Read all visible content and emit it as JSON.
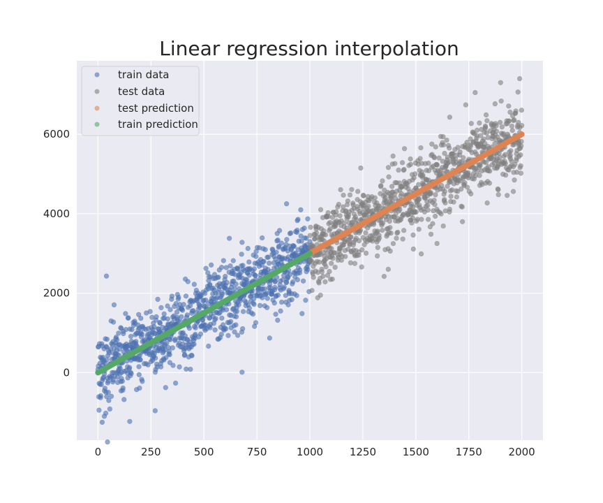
{
  "chart_data": {
    "type": "scatter",
    "title": "Linear regression interpolation",
    "xlabel": "",
    "ylabel": "",
    "xlim": [
      -100,
      2100
    ],
    "ylim": [
      -1700,
      7850
    ],
    "x_ticks": [
      0,
      250,
      500,
      750,
      1000,
      1250,
      1500,
      1750,
      2000
    ],
    "y_ticks": [
      0,
      2000,
      4000,
      6000
    ],
    "grid": true,
    "legend_position": "top-left",
    "colors": {
      "background": "#eaeaf2",
      "grid": "#ffffff",
      "train_data": "#4c72b0",
      "test_data": "#808080",
      "test_prediction": "#dd8452",
      "train_prediction": "#55a868"
    },
    "series": [
      {
        "name": "train data",
        "kind": "scatter",
        "color": "#4c72b0",
        "x_range": [
          0,
          1000
        ],
        "trend": {
          "slope": 3.0,
          "intercept": 0
        },
        "noise_sd": 520,
        "count": 1000,
        "points": [
          [
            40,
            2430
          ],
          [
            20,
            -1250
          ],
          [
            30,
            -1100
          ],
          [
            150,
            -1230
          ],
          [
            270,
            -960
          ],
          [
            680,
            10
          ],
          [
            810,
            870
          ],
          [
            890,
            4250
          ],
          [
            620,
            3380
          ],
          [
            680,
            3280
          ],
          [
            990,
            3870
          ]
        ]
      },
      {
        "name": "test data",
        "kind": "scatter",
        "color": "#808080",
        "x_range": [
          1000,
          2000
        ],
        "trend": {
          "slope": 3.0,
          "intercept": 0
        },
        "noise_sd": 520,
        "count": 1000,
        "points": [
          [
            1990,
            7400
          ],
          [
            1900,
            7300
          ],
          [
            1780,
            7050
          ],
          [
            1050,
            1950
          ],
          [
            1370,
            2600
          ],
          [
            1600,
            3250
          ],
          [
            1960,
            4560
          ],
          [
            1720,
            3800
          ],
          [
            1240,
            5150
          ],
          [
            1660,
            6430
          ]
        ]
      },
      {
        "name": "test prediction",
        "kind": "line",
        "color": "#dd8452",
        "x": [
          1000,
          2000
        ],
        "y": [
          3000,
          6000
        ]
      },
      {
        "name": "train prediction",
        "kind": "line",
        "color": "#55a868",
        "x": [
          0,
          1000
        ],
        "y": [
          0,
          3000
        ]
      }
    ]
  }
}
